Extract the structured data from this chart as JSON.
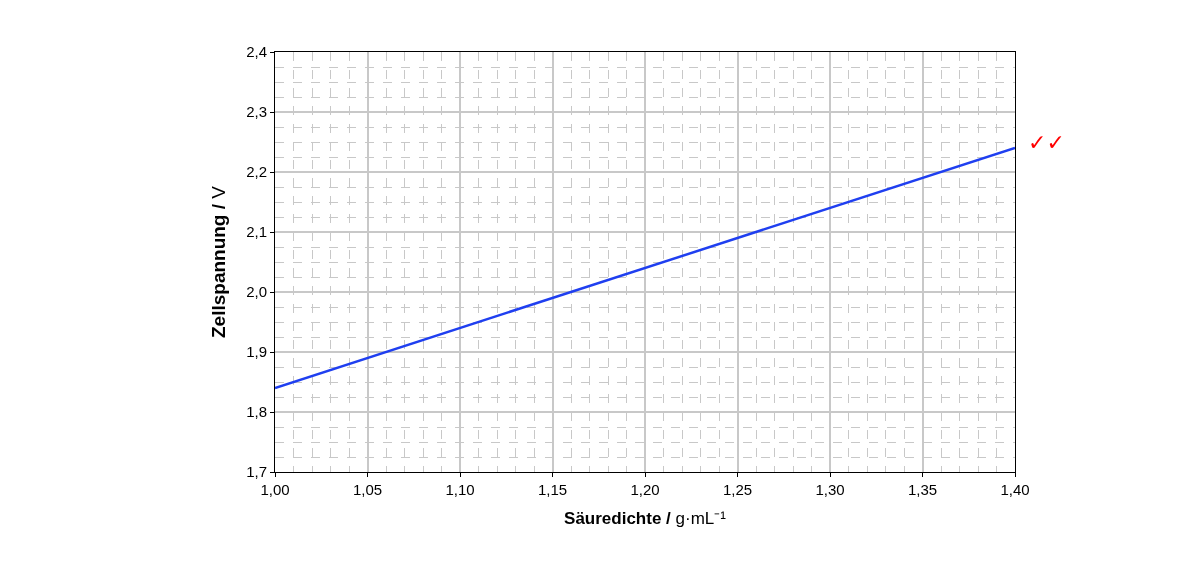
{
  "chart_data": {
    "type": "line",
    "xlabel": "Säuredichte / g·mL⁻¹",
    "ylabel": "Zellspannung / V",
    "x": [
      1.0,
      1.4
    ],
    "series": [
      {
        "color": "#1f3ff0",
        "values": [
          1.84,
          2.24
        ]
      }
    ],
    "xlim": [
      1.0,
      1.4
    ],
    "xticks": [
      {
        "value": 1.0,
        "label": "1,00"
      },
      {
        "value": 1.05,
        "label": "1,05"
      },
      {
        "value": 1.1,
        "label": "1,10"
      },
      {
        "value": 1.15,
        "label": "1,15"
      },
      {
        "value": 1.2,
        "label": "1,20"
      },
      {
        "value": 1.25,
        "label": "1,25"
      },
      {
        "value": 1.3,
        "label": "1,30"
      },
      {
        "value": 1.35,
        "label": "1,35"
      },
      {
        "value": 1.4,
        "label": "1,40"
      }
    ],
    "ylim": [
      1.7,
      2.4
    ],
    "yticks": [
      {
        "value": 1.7,
        "label": "1,7"
      },
      {
        "value": 1.8,
        "label": "1,8"
      },
      {
        "value": 1.9,
        "label": "1,9"
      },
      {
        "value": 2.0,
        "label": "2,0"
      },
      {
        "value": 2.1,
        "label": "2,1"
      },
      {
        "value": 2.2,
        "label": "2,2"
      },
      {
        "value": 2.3,
        "label": "2,3"
      },
      {
        "value": 2.4,
        "label": "2,4"
      }
    ],
    "annotations": [
      "✓✓"
    ],
    "grid": true,
    "marker": "none",
    "line_style": "solid"
  }
}
